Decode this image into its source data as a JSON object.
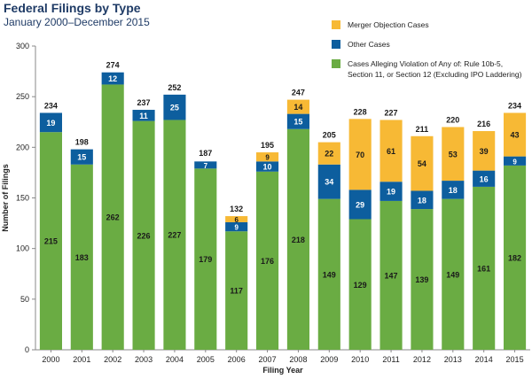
{
  "chart_data": {
    "type": "bar",
    "stacked": true,
    "title": "Federal Filings by Type",
    "subtitle": "January 2000–December 2015",
    "xlabel": "Filing Year",
    "ylabel": "Number of Filings",
    "ylim": [
      0,
      300
    ],
    "yticks": [
      0,
      50,
      100,
      150,
      200,
      250,
      300
    ],
    "categories": [
      "2000",
      "2001",
      "2002",
      "2003",
      "2004",
      "2005",
      "2006",
      "2007",
      "2008",
      "2009",
      "2010",
      "2011",
      "2012",
      "2013",
      "2014",
      "2015"
    ],
    "series": [
      {
        "name": "Cases Alleging Violation of Any of: Rule 10b-5, Section 11, or Section 12 (Excluding IPO Laddering)",
        "color": "#6aac43",
        "values": [
          215,
          183,
          262,
          226,
          227,
          179,
          117,
          176,
          218,
          149,
          129,
          147,
          139,
          149,
          161,
          182
        ]
      },
      {
        "name": "Other Cases",
        "color": "#0d5e9e",
        "values": [
          19,
          15,
          12,
          11,
          25,
          7,
          9,
          10,
          15,
          34,
          29,
          19,
          18,
          18,
          16,
          9
        ]
      },
      {
        "name": "Merger Objection Cases",
        "color": "#f7b935",
        "values": [
          null,
          null,
          null,
          null,
          null,
          null,
          6,
          9,
          14,
          22,
          70,
          61,
          54,
          53,
          39,
          43
        ]
      }
    ],
    "totals": [
      234,
      198,
      274,
      237,
      252,
      187,
      132,
      195,
      247,
      205,
      228,
      227,
      211,
      220,
      216,
      234
    ],
    "legend_order": [
      "Merger Objection Cases",
      "Other Cases",
      "Cases Alleging Violation of Any of: Rule 10b-5, Section 11, or Section 12 (Excluding IPO Laddering)"
    ],
    "legend_lines": {
      "Merger Objection Cases": [
        "Merger Objection Cases"
      ],
      "Other Cases": [
        "Other Cases"
      ],
      "Cases Alleging Violation of Any of: Rule 10b-5, Section 11, or Section 12 (Excluding IPO Laddering)": [
        "Cases Alleging Violation of Any of: Rule 10b-5,",
        "Section 11, or Section 12 (Excluding IPO Laddering)"
      ]
    }
  }
}
